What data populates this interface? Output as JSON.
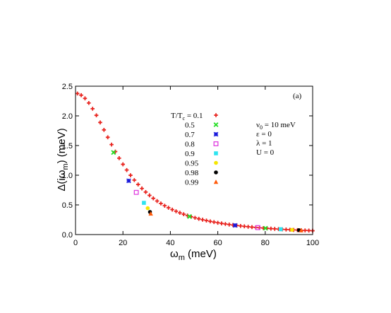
{
  "chart_data": {
    "type": "scatter",
    "xlabel": {
      "base": "ω",
      "sub": "m",
      "rest": " (meV)"
    },
    "ylabel": {
      "pre": "Δ(iω",
      "sub": "m",
      "post": ") (meV)"
    },
    "xlim": [
      0,
      100
    ],
    "ylim": [
      0,
      2.5
    ],
    "x_ticks": [
      "0",
      "20",
      "40",
      "60",
      "80",
      "100"
    ],
    "y_ticks": [
      "0.0",
      "0.5",
      "1.0",
      "1.5",
      "2.0",
      "2.5"
    ],
    "panel_label": "(a)",
    "legend_title": {
      "pre": "T/T",
      "sub": "c",
      "post": " = 0.1"
    },
    "params": [
      {
        "pre": "ν",
        "sub": "0",
        "post": " = 10 meV"
      },
      {
        "pre": "ε = 0",
        "sub": "",
        "post": ""
      },
      {
        "pre": "λ = 1",
        "sub": "",
        "post": ""
      },
      {
        "pre": "U = 0",
        "sub": "",
        "post": ""
      }
    ],
    "series": [
      {
        "name": "0.1",
        "label": "0.1",
        "marker": "plus",
        "color": "#e8231e",
        "tc": 0.1
      },
      {
        "name": "0.5",
        "label": "0.5",
        "marker": "cross",
        "color": "#22dd22",
        "tc": 0.5
      },
      {
        "name": "0.7",
        "label": "0.7",
        "marker": "star",
        "color": "#1a1adb",
        "tc": 0.7
      },
      {
        "name": "0.8",
        "label": "0.8",
        "marker": "square",
        "color": "#e040e0",
        "tc": 0.8
      },
      {
        "name": "0.9",
        "label": "0.9",
        "marker": "fsquare",
        "color": "#2ee4f0",
        "tc": 0.9
      },
      {
        "name": "0.95",
        "label": "0.95",
        "marker": "circle",
        "color": "#f5e600",
        "tc": 0.95
      },
      {
        "name": "0.98",
        "label": "0.98",
        "marker": "circle",
        "color": "#000000",
        "tc": 0.98
      },
      {
        "name": "0.99",
        "label": "0.99",
        "marker": "triangle",
        "color": "#ff5a0a",
        "tc": 0.99
      }
    ]
  }
}
